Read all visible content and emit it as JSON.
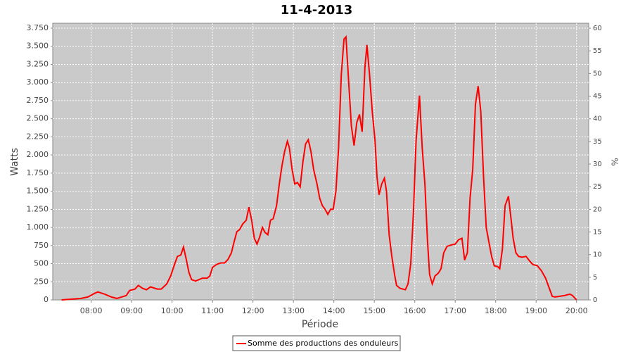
{
  "chart_data": {
    "type": "line",
    "title": "11-4-2013",
    "x_label": "Période",
    "y_label": "Watts",
    "y2_label": "%",
    "x": [
      436,
      450,
      465,
      475,
      485,
      490,
      500,
      510,
      518,
      525,
      532,
      537,
      545,
      550,
      556,
      562,
      568,
      578,
      584,
      592,
      598,
      604,
      608,
      613,
      617,
      621,
      625,
      629,
      635,
      645,
      652,
      656,
      660,
      666,
      672,
      678,
      683,
      688,
      692,
      696,
      700,
      705,
      710,
      714,
      718,
      722,
      726,
      730,
      734,
      738,
      742,
      746,
      750,
      755,
      759,
      763,
      767,
      771,
      774,
      778,
      782,
      786,
      790,
      794,
      798,
      802,
      806,
      810,
      815,
      819,
      823,
      827,
      831,
      835,
      839,
      843,
      847,
      851,
      855,
      858,
      862,
      866,
      870,
      874,
      878,
      882,
      886,
      889,
      893,
      897,
      901,
      904,
      907,
      911,
      915,
      918,
      922,
      926,
      930,
      933,
      938,
      946,
      950,
      954,
      958,
      962,
      967,
      971,
      975,
      979,
      982,
      986,
      990,
      995,
      999,
      1003,
      1008,
      1015,
      1020,
      1025,
      1030,
      1034,
      1038,
      1042,
      1046,
      1050,
      1054,
      1058,
      1062,
      1066,
      1070,
      1074,
      1078,
      1083,
      1086,
      1090,
      1094,
      1099,
      1103,
      1106,
      1110,
      1114,
      1119,
      1125,
      1130,
      1135,
      1142,
      1148,
      1154,
      1160,
      1164,
      1168,
      1175,
      1182,
      1190,
      1194,
      1200
    ],
    "series": [
      {
        "name": "Somme des productions des onduleurs",
        "color": "#ff0000",
        "values": [
          0,
          10,
          20,
          40,
          90,
          110,
          80,
          40,
          20,
          40,
          60,
          130,
          150,
          200,
          160,
          140,
          180,
          150,
          150,
          220,
          330,
          500,
          600,
          620,
          730,
          560,
          380,
          280,
          260,
          300,
          300,
          330,
          450,
          490,
          510,
          510,
          560,
          650,
          800,
          940,
          970,
          1050,
          1100,
          1280,
          1100,
          850,
          770,
          870,
          1000,
          930,
          900,
          1100,
          1120,
          1300,
          1600,
          1850,
          2050,
          2190,
          2100,
          1800,
          1600,
          1620,
          1560,
          1900,
          2150,
          2210,
          2050,
          1800,
          1600,
          1400,
          1300,
          1250,
          1180,
          1250,
          1250,
          1500,
          2100,
          3100,
          3600,
          3630,
          3000,
          2400,
          2130,
          2450,
          2560,
          2320,
          3200,
          3520,
          3100,
          2600,
          2200,
          1700,
          1450,
          1600,
          1680,
          1500,
          900,
          600,
          350,
          200,
          160,
          140,
          220,
          500,
          1200,
          2200,
          2820,
          2100,
          1600,
          800,
          350,
          220,
          330,
          370,
          430,
          650,
          740,
          760,
          770,
          830,
          850,
          550,
          650,
          1400,
          1800,
          2700,
          2950,
          2600,
          1700,
          1000,
          800,
          600,
          470,
          460,
          430,
          700,
          1300,
          1430,
          1100,
          850,
          650,
          600,
          590,
          600,
          540,
          490,
          470,
          400,
          300,
          150,
          50,
          40,
          50,
          60,
          80,
          60,
          0
        ]
      }
    ],
    "xlim": [
      423,
      1218
    ],
    "xticks": [
      {
        "value": 480,
        "label": "08:00"
      },
      {
        "value": 540,
        "label": "09:00"
      },
      {
        "value": 600,
        "label": "10:00"
      },
      {
        "value": 660,
        "label": "11:00"
      },
      {
        "value": 720,
        "label": "12:00"
      },
      {
        "value": 780,
        "label": "13:00"
      },
      {
        "value": 840,
        "label": "14:00"
      },
      {
        "value": 900,
        "label": "15:00"
      },
      {
        "value": 960,
        "label": "16:00"
      },
      {
        "value": 1020,
        "label": "17:00"
      },
      {
        "value": 1080,
        "label": "18:00"
      },
      {
        "value": 1140,
        "label": "19:00"
      },
      {
        "value": 1200,
        "label": "20:00"
      }
    ],
    "ylim": [
      0,
      3818
    ],
    "yticks": [
      0,
      250,
      500,
      750,
      {
        "value": 1000,
        "label": "1.000"
      },
      {
        "value": 1250,
        "label": "1.250"
      },
      {
        "value": 1500,
        "label": "1.500"
      },
      {
        "value": 1750,
        "label": "1.750"
      },
      {
        "value": 2000,
        "label": "2.000"
      },
      {
        "value": 2250,
        "label": "2.250"
      },
      {
        "value": 2500,
        "label": "2.500"
      },
      {
        "value": 2750,
        "label": "2.750"
      },
      {
        "value": 3000,
        "label": "3.000"
      },
      {
        "value": 3250,
        "label": "3.250"
      },
      {
        "value": 3500,
        "label": "3.500"
      },
      {
        "value": 3750,
        "label": "3.750"
      }
    ],
    "y2lim": [
      0,
      61.1
    ],
    "y2ticks": [
      0,
      5,
      10,
      15,
      20,
      25,
      30,
      35,
      40,
      45,
      50,
      55,
      60
    ],
    "grid": true
  }
}
